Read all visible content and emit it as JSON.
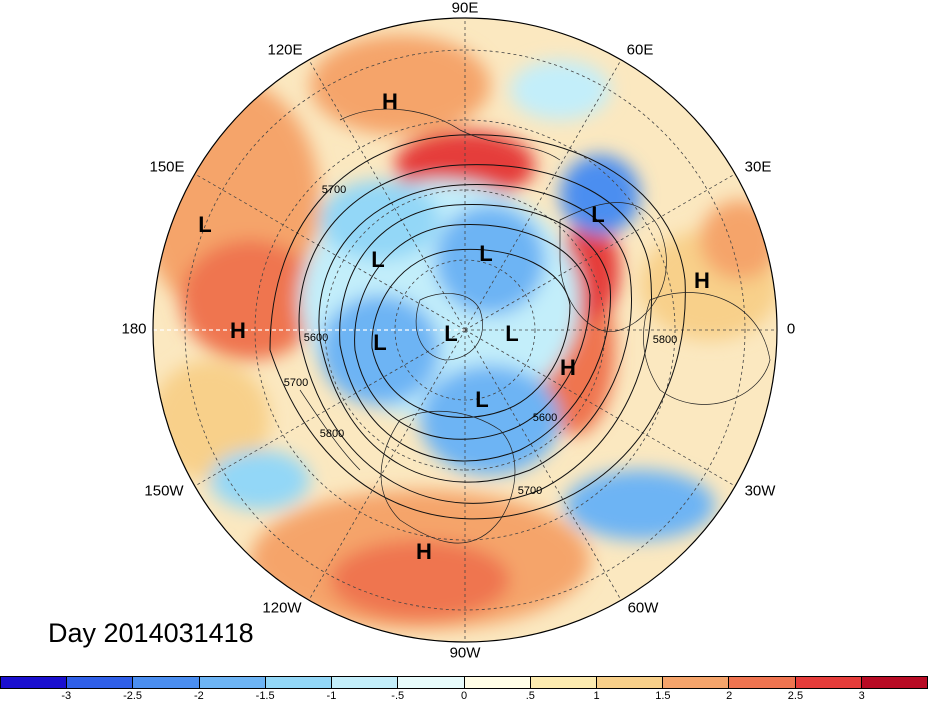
{
  "title": "Day 2014031418",
  "longitude_labels": [
    "90E",
    "60E",
    "30E",
    "0",
    "30W",
    "60W",
    "90W",
    "120W",
    "150W",
    "180",
    "150E",
    "120E"
  ],
  "systems": [
    {
      "type": "H"
    },
    {
      "type": "L"
    },
    {
      "type": "L"
    },
    {
      "type": "L"
    },
    {
      "type": "H"
    },
    {
      "type": "L"
    },
    {
      "type": "H"
    },
    {
      "type": "L"
    },
    {
      "type": "L"
    },
    {
      "type": "L"
    },
    {
      "type": "H"
    },
    {
      "type": "L"
    },
    {
      "type": "H"
    }
  ],
  "contour_labels": [
    "5700",
    "5600",
    "5700",
    "5800",
    "5800",
    "5600",
    "5700"
  ],
  "colorbar": {
    "colors": [
      "#1a0fcf",
      "#2f5fe8",
      "#4b8ef0",
      "#6db4f4",
      "#93d7f7",
      "#c3eefa",
      "#e7fbfb",
      "#fffde6",
      "#fcebb0",
      "#f8d08a",
      "#f5a46b",
      "#ef7450",
      "#e53c3a",
      "#b80b24"
    ],
    "ticks": [
      "-3",
      "-2.5",
      "-2",
      "-1.5",
      "-1",
      "-.5",
      "0",
      ".5",
      "1",
      "1.5",
      "2",
      "2.5",
      "3"
    ]
  },
  "accent_colors": {
    "warm": "#f08a5c",
    "cool": "#6ab0f0",
    "neutral": "#fbf3d8"
  }
}
